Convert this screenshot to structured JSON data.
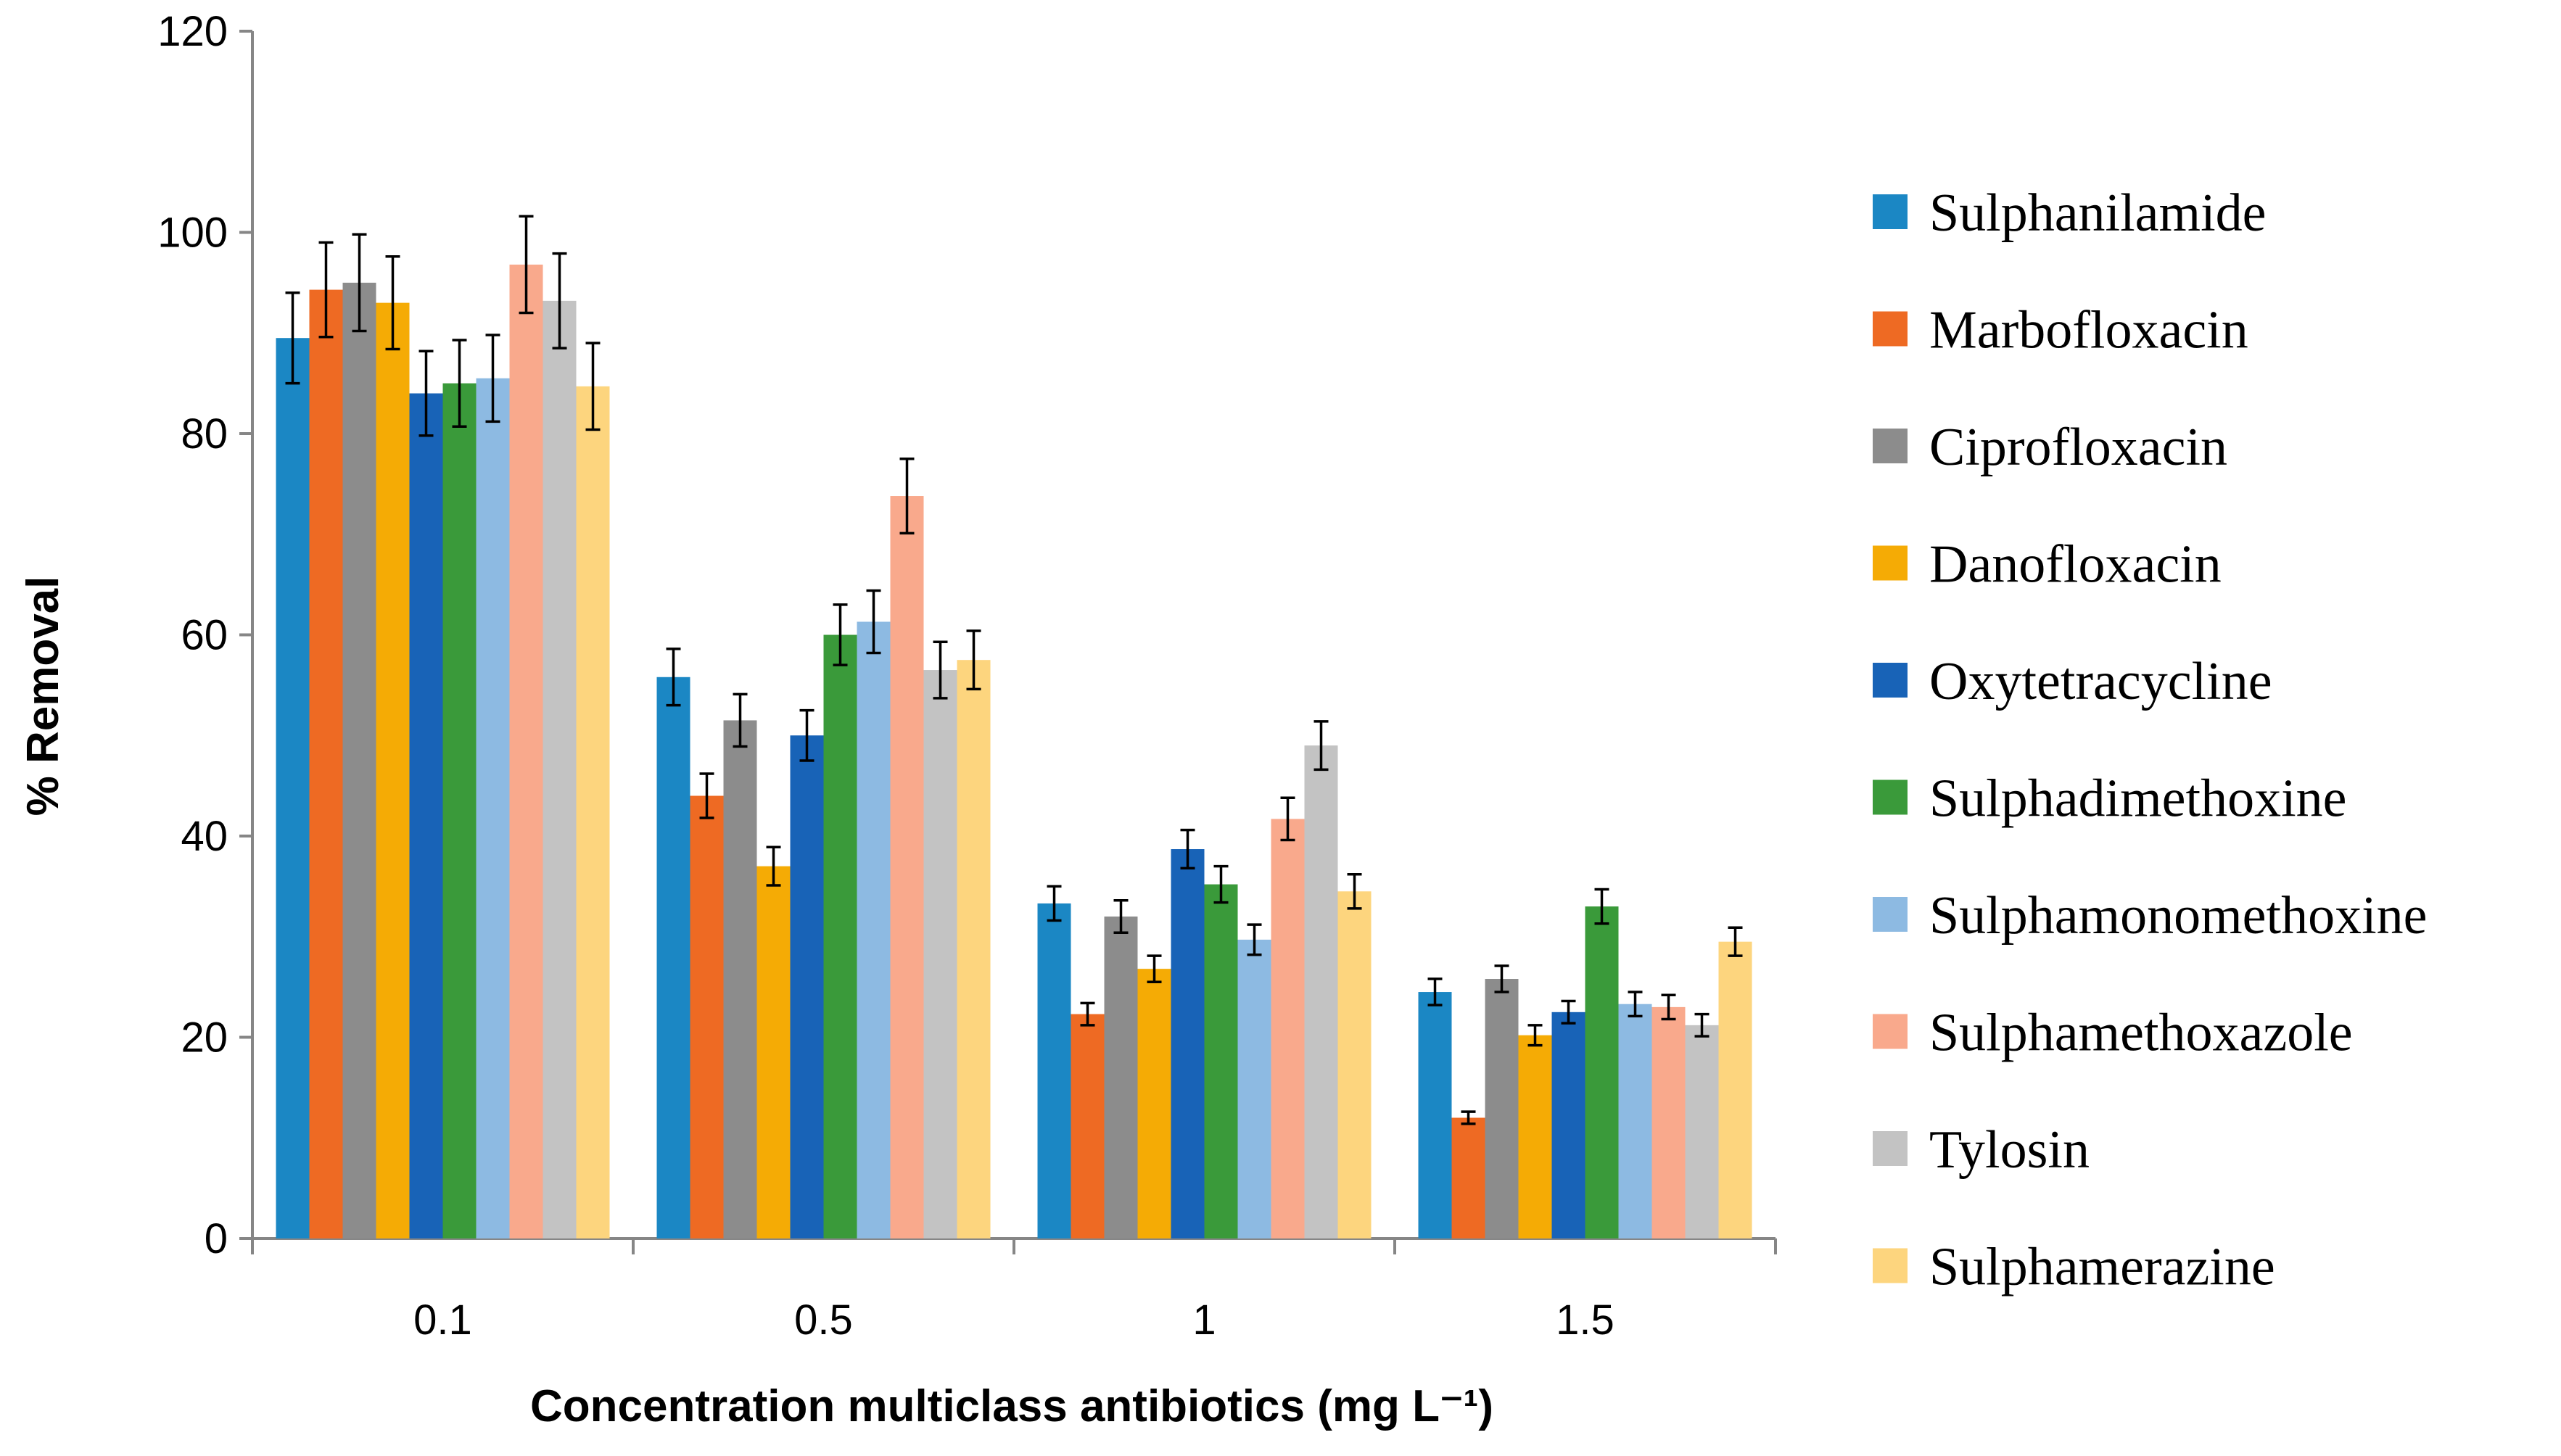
{
  "chart_data": {
    "type": "bar",
    "title": "",
    "xlabel": "Concentration multiclass antibiotics (mg L⁻¹)",
    "ylabel": "% Removal",
    "ylim": [
      0,
      120
    ],
    "yticks": [
      0,
      20,
      40,
      60,
      80,
      100,
      120
    ],
    "categories": [
      "0.1",
      "0.5",
      "1",
      "1.5"
    ],
    "legend_position": "right",
    "error_bars": true,
    "series": [
      {
        "name": "Sulphanilamide",
        "color": "#1B87C4",
        "values": [
          89.5,
          55.8,
          33.3,
          24.5
        ],
        "errors": [
          4.5,
          2.8,
          1.7,
          1.3
        ]
      },
      {
        "name": "Marbofloxacin",
        "color": "#EE6A23",
        "values": [
          94.3,
          44.0,
          22.3,
          12.0
        ],
        "errors": [
          4.7,
          2.2,
          1.1,
          0.6
        ]
      },
      {
        "name": "Ciprofloxacin",
        "color": "#8C8C8C",
        "values": [
          95.0,
          51.5,
          32.0,
          25.8
        ],
        "errors": [
          4.8,
          2.6,
          1.6,
          1.3
        ]
      },
      {
        "name": "Danofloxacin",
        "color": "#F5AB05",
        "values": [
          93.0,
          37.0,
          26.8,
          20.2
        ],
        "errors": [
          4.6,
          1.9,
          1.3,
          1.0
        ]
      },
      {
        "name": "Oxytetracycline",
        "color": "#1863B7",
        "values": [
          84.0,
          50.0,
          38.7,
          22.5
        ],
        "errors": [
          4.2,
          2.5,
          1.9,
          1.1
        ]
      },
      {
        "name": "Sulphadimethoxine",
        "color": "#3A9A3A",
        "values": [
          85.0,
          60.0,
          35.2,
          33.0
        ],
        "errors": [
          4.3,
          3.0,
          1.8,
          1.7
        ]
      },
      {
        "name": "Sulphamonomethoxine",
        "color": "#8DBAE2",
        "values": [
          85.5,
          61.3,
          29.7,
          23.3
        ],
        "errors": [
          4.3,
          3.1,
          1.5,
          1.2
        ]
      },
      {
        "name": "Sulphamethoxazole",
        "color": "#F9A98C",
        "values": [
          96.8,
          73.8,
          41.7,
          23.0
        ],
        "errors": [
          4.8,
          3.7,
          2.1,
          1.2
        ]
      },
      {
        "name": "Tylosin",
        "color": "#C3C3C3",
        "values": [
          93.2,
          56.5,
          49.0,
          21.2
        ],
        "errors": [
          4.7,
          2.8,
          2.4,
          1.1
        ]
      },
      {
        "name": "Sulphamerazine",
        "color": "#FDD57E",
        "values": [
          84.7,
          57.5,
          34.5,
          29.5
        ],
        "errors": [
          4.3,
          2.9,
          1.7,
          1.4
        ]
      }
    ]
  }
}
